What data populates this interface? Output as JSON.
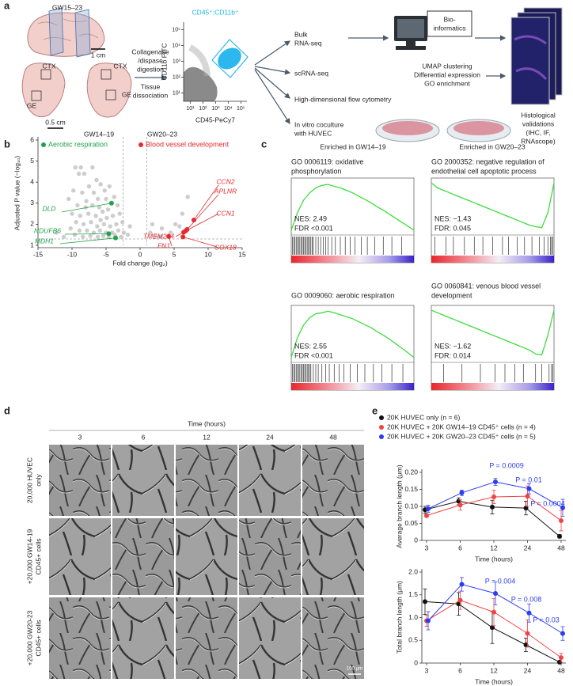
{
  "panel_labels": [
    "a",
    "b",
    "c",
    "d",
    "e"
  ],
  "panel_a": {
    "age": "GW15–23",
    "scale_1": "1 cm",
    "scale_2": "0.5 cm",
    "regions": [
      "CTX",
      "GE",
      "CTX",
      "GE"
    ],
    "steps_1": [
      "Collagenase",
      "/dispase",
      "digestion"
    ],
    "steps_2": [
      "Tissue",
      "dissociation"
    ],
    "flow_plot": {
      "title": "CD45⁺;CD11b⁺",
      "xlabel": "CD45-PeCy7",
      "ylabel": "CD11b FITC",
      "log_scale": true,
      "xlim": [
        3,
        300000
      ],
      "ylim": [
        3,
        300000
      ],
      "xticks": [
        {
          "value": 10,
          "label": "10¹"
        },
        {
          "value": 100,
          "label": "10²"
        },
        {
          "value": 1000,
          "label": "10³"
        },
        {
          "value": 10000,
          "label": "10⁴"
        },
        {
          "value": 100000,
          "label": "10⁵"
        }
      ],
      "yticks": [
        {
          "value": 10,
          "label": "10¹"
        },
        {
          "value": 100,
          "label": "10²"
        },
        {
          "value": 1000,
          "label": "10³"
        },
        {
          "value": 10000,
          "label": "10⁴"
        },
        {
          "value": 100000,
          "label": "10⁵"
        }
      ]
    },
    "methods": [
      [
        "Bulk",
        "RNA-seq"
      ],
      [
        "scRNA-seq"
      ],
      [
        "High-dimensional flow cytometry"
      ],
      [
        "In vitro coculture",
        "with HUVEC"
      ]
    ],
    "bioinformatics": [
      "Bio-",
      "informatics"
    ],
    "analyses": [
      "UMAP clustering",
      "Differential expression",
      "GO enrichment"
    ],
    "validation": [
      "Histological",
      "validations",
      "(IHC, IF,",
      "RNAscope)"
    ]
  },
  "panel_b": {
    "type": "scatter",
    "group_labels": [
      "GW14–19",
      "GW20–23"
    ],
    "xlabel": "Fold change (log₂)",
    "ylabel": "Adjusted P value (−log₁₀)",
    "xlim": [
      -15,
      15
    ],
    "ylim": [
      1,
      6
    ],
    "xticks": [
      -15,
      -10,
      -5,
      0,
      5,
      10,
      15
    ],
    "yticks": [
      1,
      2,
      3,
      4,
      5,
      6
    ],
    "thresholds_x": [
      -2.5,
      1
    ],
    "threshold_y": 1.3,
    "series": [
      {
        "color": "#c4c4c4",
        "x": [
          -9.5,
          -8.7,
          -9,
          -8.2,
          -7,
          -6.4,
          -5.8,
          -7.5,
          -9.8,
          -8.5,
          -6.8,
          -5.2,
          -4.5,
          -10.5,
          -7.9,
          -6.2,
          -5,
          -3.8,
          -9.2,
          -8,
          -7,
          -6,
          -5.5,
          -4.7,
          -3.3,
          -10,
          -8.8,
          -7.6,
          -6.5,
          -5.8,
          -4.9,
          -4,
          -3,
          -9.4,
          -8.3,
          -7.2,
          -6.3,
          -5.3,
          -4.4,
          -3.5,
          -2.6,
          -10.2,
          -8.9,
          -7.8,
          -6.8,
          -5.9,
          -5,
          -4.1,
          -3.2,
          -2.4,
          -9.6,
          -8.4,
          -7.3,
          -6.2,
          -5.4,
          -4.6,
          -3.7,
          -2.8,
          -11.2,
          -12.3,
          -1.8,
          1.5,
          2.3,
          3.2,
          4.5,
          5.2,
          5.8,
          6.2,
          7,
          3,
          1.8,
          -1.5
        ],
        "y": [
          4.7,
          4.7,
          4.4,
          4.4,
          4.7,
          4.1,
          3.9,
          3.8,
          3.6,
          3.5,
          3.5,
          3.6,
          3.8,
          3.2,
          3.1,
          3.2,
          3.2,
          3.3,
          2.9,
          2.8,
          2.9,
          2.8,
          2.6,
          2.7,
          2.9,
          2.5,
          2.4,
          2.5,
          2.4,
          2.2,
          2.3,
          2.4,
          2.5,
          2.1,
          2,
          2.1,
          1.9,
          2,
          1.9,
          2,
          2.1,
          1.8,
          1.7,
          1.7,
          1.6,
          1.7,
          1.6,
          1.6,
          1.7,
          1.6,
          1.5,
          1.4,
          1.45,
          1.4,
          1.45,
          1.4,
          1.5,
          1.4,
          1.4,
          1.6,
          1.5,
          1.6,
          1.45,
          1.8,
          1.6,
          2,
          1.9,
          2.5,
          3.3,
          1.4,
          2,
          1.9
        ]
      },
      {
        "name": "Aerobic respiration",
        "color": "#1fa34a",
        "labels": [
          "DLD",
          "NDUFB6",
          "MDH1"
        ],
        "x": [
          -4.2,
          -4.6,
          -3.6
        ],
        "y": [
          3,
          1.55,
          1.35
        ]
      },
      {
        "name": "Blood vessel development",
        "color": "#e32b2f",
        "labels": [
          "CCN2",
          "APLNR",
          "CCN1",
          "TMEM204",
          "FN1",
          "SOX18"
        ],
        "x": [
          7.9,
          6.9,
          6.7,
          6.4,
          4.2,
          6.3
        ],
        "y": [
          2.2,
          1.75,
          1.68,
          1.62,
          1.42,
          1.4
        ]
      }
    ]
  },
  "panel_c": {
    "headers": [
      "Enriched in GW14–19",
      "Enriched in GW20–23"
    ],
    "plots": [
      {
        "title": [
          "GO 0006119: oxidative",
          "phosphorylation"
        ],
        "nes": "NES: 2.49",
        "fdr": "FDR <0.001",
        "ylim": [
          -0.05,
          1
        ],
        "values": [
          0,
          0.35,
          0.6,
          0.75,
          0.85,
          0.9,
          0.92,
          0.88,
          0.85,
          0.8,
          0.75,
          0.68,
          0.62,
          0.55,
          0.47,
          0.4,
          0.32,
          0.24,
          0.16,
          0.08,
          0
        ],
        "hits": [
          1,
          2,
          3,
          4,
          5,
          6,
          7,
          8,
          9,
          10,
          11,
          12,
          13,
          14,
          15,
          16,
          17,
          18,
          20,
          22,
          24,
          26,
          28,
          30,
          33,
          36,
          40,
          44,
          48,
          52,
          57,
          62,
          68,
          75,
          82,
          90
        ]
      },
      {
        "title": [
          "GO 2000352: negative regulation of",
          "endothelial cell apoptotic process"
        ],
        "nes": "NES: −1.43",
        "fdr": "FDR: 0.045",
        "ylim": [
          -1,
          0.05
        ],
        "values": [
          0,
          -0.1,
          -0.15,
          -0.2,
          -0.25,
          -0.3,
          -0.35,
          -0.4,
          -0.45,
          -0.5,
          -0.55,
          -0.6,
          -0.65,
          -0.7,
          -0.75,
          -0.8,
          -0.85,
          -0.88,
          -0.9,
          -0.6,
          0
        ],
        "hits": [
          3,
          12,
          18,
          27,
          35,
          42,
          50,
          58,
          63,
          70,
          76,
          82,
          88,
          92,
          95,
          97,
          98,
          99
        ]
      },
      {
        "title": [
          "GO 0009060: aerobic respiration"
        ],
        "nes": "NES: 2.55",
        "fdr": "FDR <0.001",
        "ylim": [
          -0.05,
          1
        ],
        "values": [
          0,
          0.4,
          0.65,
          0.8,
          0.88,
          0.9,
          0.93,
          0.9,
          0.86,
          0.82,
          0.78,
          0.72,
          0.66,
          0.6,
          0.52,
          0.45,
          0.37,
          0.28,
          0.19,
          0.1,
          0
        ],
        "hits": [
          1,
          2,
          3,
          4,
          5,
          6,
          7,
          8,
          9,
          10,
          11,
          12,
          13,
          14,
          15,
          16,
          18,
          20,
          22,
          25,
          28,
          31,
          35,
          39,
          43,
          48,
          54,
          60,
          67,
          74,
          82,
          91
        ]
      },
      {
        "title": [
          "GO 0060841: venous blood vessel",
          "development"
        ],
        "nes": "NES: −1.62",
        "fdr": "FDR: 0.014",
        "ylim": [
          -1,
          0.05
        ],
        "values": [
          0,
          -0.05,
          -0.1,
          -0.15,
          -0.2,
          -0.25,
          -0.3,
          -0.35,
          -0.4,
          -0.45,
          -0.5,
          -0.55,
          -0.6,
          -0.65,
          -0.7,
          -0.75,
          -0.8,
          -0.88,
          -0.9,
          -0.5,
          0
        ],
        "hits": [
          10,
          25,
          40,
          52,
          60,
          68,
          75,
          85,
          90,
          96,
          98,
          99
        ]
      }
    ]
  },
  "panel_d": {
    "time_label": "Time (hours)",
    "times": [
      "3",
      "6",
      "12",
      "24",
      "48"
    ],
    "rows": [
      [
        "20,000 HUVEC",
        "only"
      ],
      [
        "+20,000 GW14-19",
        "CD45+ cells"
      ],
      [
        "+20,000 GW20-23",
        "CD45+ cells"
      ]
    ],
    "scale_bar": "100 μm"
  },
  "panel_e": {
    "series_names": [
      "20K HUVEC only (n = 6)",
      "20K HUVEC + 20K GW14–19 CD45⁺ cells (n = 4)",
      "20K HUVEC + 20K GW20–23 CD45⁺ cells (n = 5)"
    ],
    "colors": [
      "#111111",
      "#f04444",
      "#2c3cf0"
    ],
    "charts": [
      {
        "type": "line",
        "ylabel": "Average branch length (μm)",
        "xlabel": "Time (hours)",
        "categories": [
          3,
          6,
          12,
          24,
          48
        ],
        "ylim": [
          0,
          0.2
        ],
        "yticks": [
          0,
          0.05,
          {
            "value": 0.1,
            "label": "0.10"
          },
          0.15,
          {
            "value": 0.2,
            "label": "0.20"
          }
        ],
        "series": [
          {
            "values": [
              0.09,
              0.115,
              0.098,
              0.095,
              0.012
            ],
            "errors": [
              0.01,
              0.01,
              0.02,
              0.02,
              0.005
            ]
          },
          {
            "values": [
              0.073,
              0.104,
              0.128,
              0.13,
              0.058
            ],
            "errors": [
              0.005,
              0.015,
              0.02,
              0.03,
              0.03
            ]
          },
          {
            "values": [
              0.093,
              0.14,
              0.172,
              0.152,
              0.096
            ],
            "errors": [
              0.01,
              0.008,
              0.01,
              0.015,
              0.025
            ]
          }
        ],
        "annotations": [
          "P = 0.0009",
          "P = 0.01",
          "P = 0.0004"
        ]
      },
      {
        "type": "line",
        "ylabel": "Total branch length (μm)",
        "xlabel": "Time (hours)",
        "categories": [
          3,
          6,
          12,
          24,
          48
        ],
        "ylim": [
          0,
          2
        ],
        "yticks": [
          0,
          0.5,
          {
            "value": 1,
            "label": "1.0"
          },
          1.5,
          {
            "value": 2,
            "label": "2.0"
          }
        ],
        "series": [
          {
            "values": [
              1.35,
              1.3,
              0.78,
              0.4,
              0.02
            ],
            "errors": [
              0.28,
              0.25,
              0.35,
              0.15,
              0.02
            ]
          },
          {
            "values": [
              0.93,
              1.38,
              1.12,
              0.65,
              0.12
            ],
            "errors": [
              0.12,
              0.2,
              0.3,
              0.3,
              0.1
            ]
          },
          {
            "values": [
              0.93,
              1.73,
              1.53,
              1.1,
              0.65
            ],
            "errors": [
              0.2,
              0.15,
              0.25,
              0.2,
              0.15
            ]
          }
        ],
        "annotations": [
          "P = 0.004",
          "P = 0.008",
          "P = 0.03"
        ]
      }
    ]
  }
}
